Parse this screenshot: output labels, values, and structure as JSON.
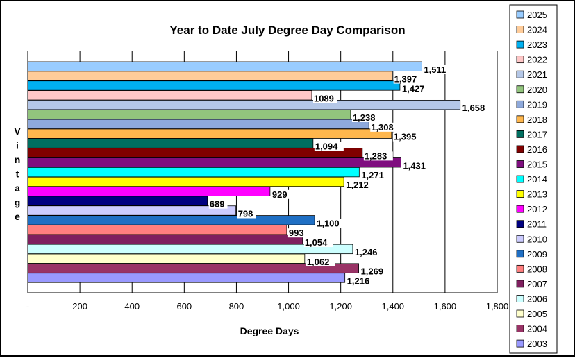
{
  "chart_data": {
    "type": "bar",
    "orientation": "horizontal",
    "title": "Year to Date July Degree Day Comparison",
    "xlabel": "Degree Days",
    "ylabel": "Vintage",
    "xlim": [
      0,
      1800
    ],
    "x_ticks": [
      "-",
      "200",
      "400",
      "600",
      "800",
      "1,000",
      "1,200",
      "1,400",
      "1,600",
      "1,800"
    ],
    "grid": "vertical",
    "legend_position": "right",
    "categories": [
      "2025",
      "2024",
      "2023",
      "2022",
      "2021",
      "2020",
      "2019",
      "2018",
      "2017",
      "2016",
      "2015",
      "2014",
      "2013",
      "2012",
      "2011",
      "2010",
      "2009",
      "2008",
      "2007",
      "2006",
      "2005",
      "2004",
      "2003"
    ],
    "values": [
      1511,
      1397,
      1427,
      1089,
      1658,
      1238,
      1308,
      1395,
      1094,
      1283,
      1431,
      1271,
      1212,
      929,
      689,
      798,
      1100,
      993,
      1054,
      1246,
      1062,
      1269,
      1216
    ],
    "labels": [
      "1,511",
      "1,397",
      "1,427",
      "1089",
      "1,658",
      "1,238",
      "1,308",
      "1,395",
      "1,094",
      "1,283",
      "1,431",
      "1,271",
      "1,212",
      "929",
      "689",
      "798",
      "1,100",
      "993",
      "1,054",
      "1,246",
      "1,062",
      "1,269",
      "1,216"
    ],
    "colors": [
      "#99CCFF",
      "#FFCC99",
      "#00B0F0",
      "#FFC7C7",
      "#B4C7E7",
      "#92C47D",
      "#8EA9DB",
      "#FFB74D",
      "#006F60",
      "#800000",
      "#7F0E7F",
      "#00FFFF",
      "#FFFF00",
      "#FF00FF",
      "#000080",
      "#CCCCFF",
      "#1F6FC4",
      "#FF7F7F",
      "#7F1F5F",
      "#CCFFFF",
      "#FFFFCC",
      "#993366",
      "#9999FF"
    ]
  }
}
